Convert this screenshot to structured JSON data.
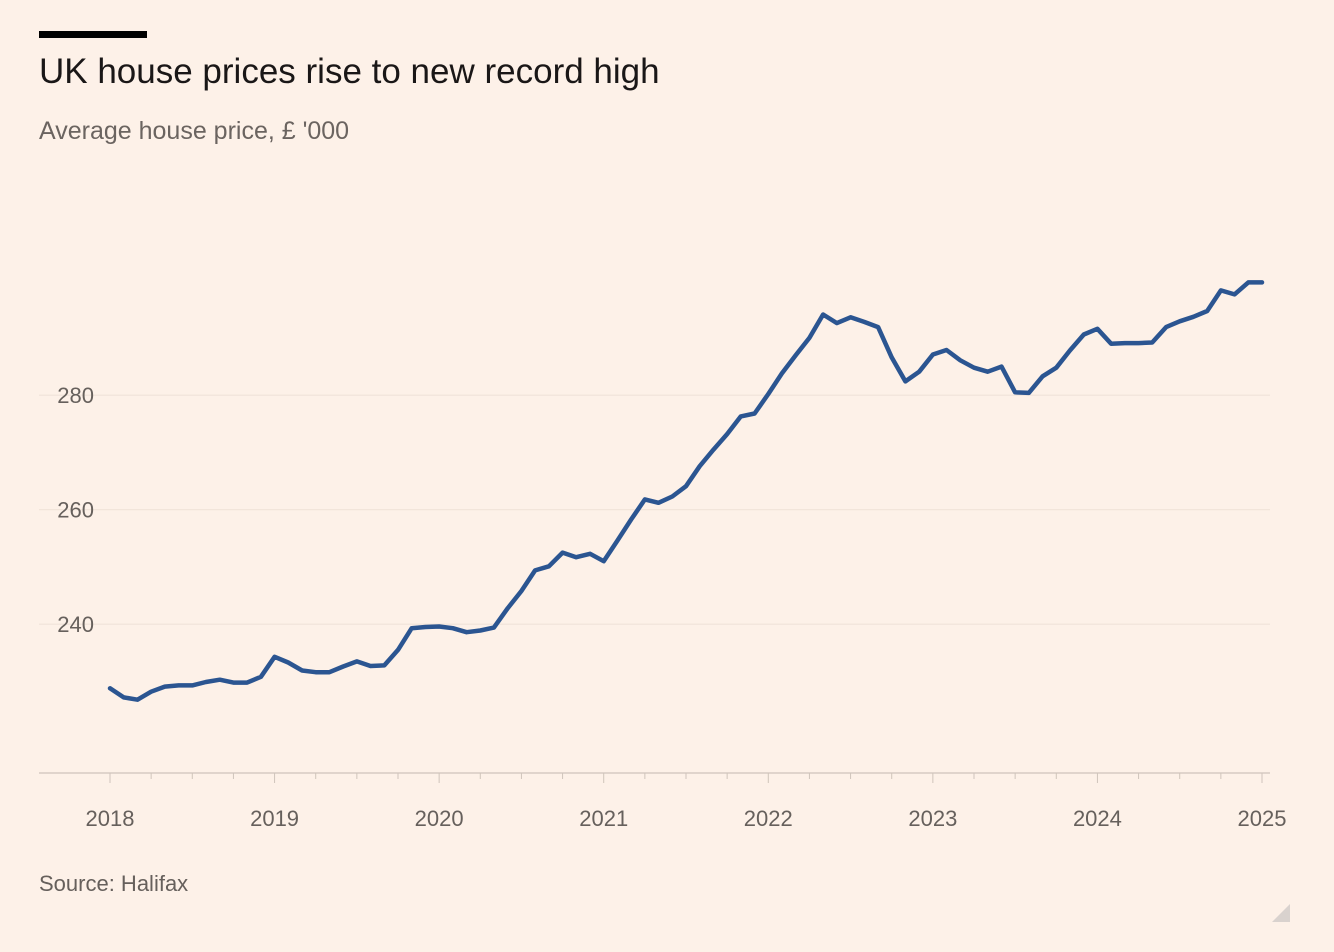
{
  "title": "UK house prices rise to new record high",
  "subtitle": "Average house price, £ '000",
  "source": "Source: Halifax",
  "colors": {
    "background": "#FDF1E8",
    "line": "#2B5591",
    "grid": "#F0E3D9",
    "axis": "#CFC4BB",
    "text": "#66605C"
  },
  "chart_data": {
    "type": "line",
    "title": "UK house prices rise to new record high",
    "ylabel": "Average house price, £ '000",
    "xlabel": "",
    "ylim": [
      214,
      312
    ],
    "xlim": [
      2018.0,
      2025.0
    ],
    "yticks": [
      240,
      260,
      280
    ],
    "ytick_labels": [
      "240",
      "260",
      "280"
    ],
    "xticks": [
      2018,
      2019,
      2020,
      2021,
      2022,
      2023,
      2024,
      2025
    ],
    "xtick_labels": [
      "2018",
      "2019",
      "2020",
      "2021",
      "2022",
      "2023",
      "2024",
      "2025"
    ],
    "grid": true,
    "series": [
      {
        "name": "Average house price",
        "x": [
          2018.0,
          2018.083,
          2018.167,
          2018.25,
          2018.333,
          2018.417,
          2018.5,
          2018.583,
          2018.667,
          2018.75,
          2018.833,
          2018.917,
          2019.0,
          2019.083,
          2019.167,
          2019.25,
          2019.333,
          2019.417,
          2019.5,
          2019.583,
          2019.667,
          2019.75,
          2019.833,
          2019.917,
          2020.0,
          2020.083,
          2020.167,
          2020.25,
          2020.333,
          2020.417,
          2020.5,
          2020.583,
          2020.667,
          2020.75,
          2020.833,
          2020.917,
          2021.0,
          2021.083,
          2021.167,
          2021.25,
          2021.333,
          2021.417,
          2021.5,
          2021.583,
          2021.667,
          2021.75,
          2021.833,
          2021.917,
          2022.0,
          2022.083,
          2022.167,
          2022.25,
          2022.333,
          2022.417,
          2022.5,
          2022.583,
          2022.667,
          2022.75,
          2022.833,
          2022.917,
          2023.0,
          2023.083,
          2023.167,
          2023.25,
          2023.333,
          2023.417,
          2023.5,
          2023.583,
          2023.667,
          2023.75,
          2023.833,
          2023.917,
          2024.0,
          2024.083,
          2024.167,
          2024.25,
          2024.333,
          2024.417,
          2024.5,
          2024.583,
          2024.667,
          2024.75,
          2024.833,
          2024.917,
          2025.0
        ],
        "values": [
          228.8,
          227.2,
          226.8,
          228.2,
          229.1,
          229.3,
          229.3,
          229.9,
          230.3,
          229.8,
          229.8,
          230.8,
          234.3,
          233.3,
          231.9,
          231.6,
          231.6,
          232.6,
          233.5,
          232.7,
          232.8,
          235.5,
          239.3,
          239.5,
          239.6,
          239.3,
          238.6,
          238.9,
          239.4,
          242.8,
          245.8,
          249.4,
          250.1,
          252.5,
          251.7,
          252.3,
          251.0,
          254.6,
          258.3,
          261.8,
          261.2,
          262.3,
          264.1,
          267.6,
          270.5,
          273.2,
          276.3,
          276.8,
          280.2,
          283.8,
          287.0,
          290.0,
          294.1,
          292.6,
          293.6,
          292.8,
          291.9,
          286.6,
          282.4,
          284.1,
          287.1,
          287.9,
          286.1,
          284.8,
          284.1,
          285.0,
          280.5,
          280.4,
          283.3,
          284.8,
          287.8,
          290.6,
          291.6,
          289.0,
          289.1,
          289.1,
          289.2,
          291.9,
          292.9,
          293.7,
          294.7,
          298.3,
          297.6,
          299.7,
          299.7
        ]
      }
    ]
  }
}
